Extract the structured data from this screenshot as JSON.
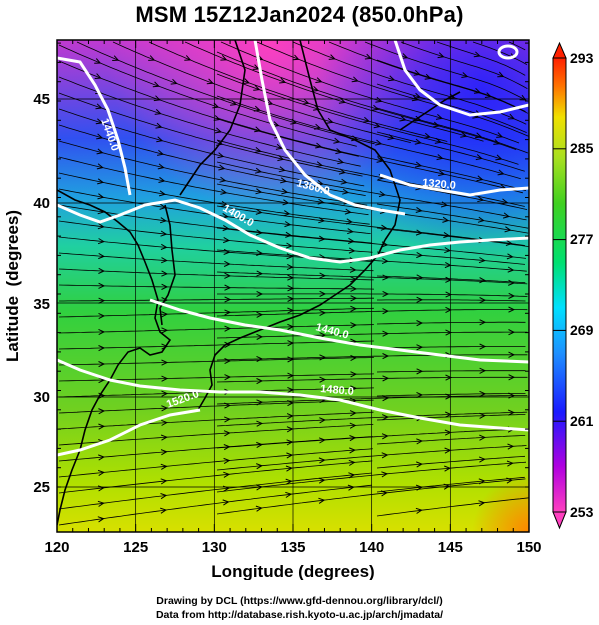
{
  "title": "MSM 15Z12Jan2024 (850.0hPa)",
  "axes": {
    "xlabel": "Longitude (degrees)",
    "ylabel": "Latitude  (degrees)",
    "xticks": [
      "120",
      "125",
      "130",
      "135",
      "140",
      "145",
      "150"
    ],
    "yticks": [
      "25",
      "30",
      "35",
      "40",
      "45"
    ]
  },
  "colorbar": {
    "ticks": [
      "253",
      "261",
      "269",
      "277",
      "285",
      "293"
    ],
    "colors": [
      "#ff40c0",
      "#b000e0",
      "#1a1aff",
      "#1e90ff",
      "#00e0ff",
      "#00e070",
      "#40d020",
      "#a8e020",
      "#f0e000",
      "#ff7000",
      "#ff2000"
    ]
  },
  "contours": {
    "labels": [
      "1440.0",
      "1360.0",
      "1320.0",
      "1400.0",
      "1440.0",
      "1480.0",
      "1520.0"
    ]
  },
  "credits": {
    "line1": "Drawing by DCL (https://www.gfd-dennou.org/library/dcl/)",
    "line2": "Data from http://database.rish.kyoto-u.ac.jp/arch/jmadata/"
  }
}
